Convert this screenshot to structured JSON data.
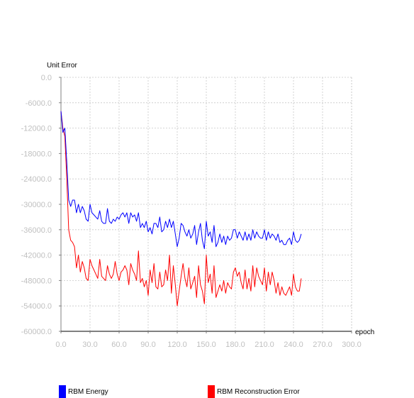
{
  "chart_data": {
    "type": "line",
    "title": "",
    "xlabel": "epoch",
    "ylabel": "Unit Error",
    "xlim": [
      0,
      300
    ],
    "ylim": [
      -60000,
      0
    ],
    "x_ticks": [
      0,
      30,
      60,
      90,
      120,
      150,
      180,
      210,
      240,
      270,
      300
    ],
    "x_tick_labels": [
      "0.0",
      "30.0",
      "60.0",
      "90.0",
      "120.0",
      "150.0",
      "180.0",
      "210.0",
      "240.0",
      "270.0",
      "300.0"
    ],
    "y_ticks": [
      0,
      -6000,
      -12000,
      -18000,
      -24000,
      -30000,
      -36000,
      -42000,
      -48000,
      -54000,
      -60000
    ],
    "y_tick_labels": [
      "0.0",
      "-6000.0",
      "-12000.0",
      "-18000.0",
      "-24000.0",
      "-30000.0",
      "-36000.0",
      "-42000.0",
      "-48000.0",
      "-54000.0",
      "-60000.0"
    ],
    "grid": true,
    "legend_position": "bottom",
    "series": [
      {
        "name": "RBM Energy",
        "color": "#0000ff",
        "x": [
          0,
          2,
          4,
          6,
          8,
          10,
          12,
          14,
          16,
          18,
          20,
          22,
          24,
          26,
          28,
          30,
          32,
          34,
          36,
          38,
          40,
          42,
          44,
          46,
          48,
          50,
          52,
          54,
          56,
          58,
          60,
          62,
          64,
          66,
          68,
          70,
          72,
          74,
          76,
          78,
          80,
          82,
          84,
          86,
          88,
          90,
          92,
          94,
          96,
          98,
          100,
          102,
          104,
          106,
          108,
          110,
          112,
          114,
          116,
          118,
          120,
          122,
          124,
          126,
          128,
          130,
          132,
          134,
          136,
          138,
          140,
          142,
          144,
          146,
          148,
          150,
          152,
          154,
          156,
          158,
          160,
          162,
          164,
          166,
          168,
          170,
          172,
          174,
          176,
          178,
          180,
          182,
          184,
          186,
          188,
          190,
          192,
          194,
          196,
          198,
          200,
          202,
          204,
          206,
          208,
          210,
          212,
          214,
          216,
          218,
          220,
          222,
          224,
          226,
          228,
          230,
          232,
          234,
          236,
          238,
          240,
          242,
          244,
          246,
          248
        ],
        "values": [
          -8000,
          -13000,
          -12000,
          -20000,
          -29000,
          -30500,
          -29000,
          -29000,
          -32000,
          -30000,
          -32000,
          -30500,
          -31500,
          -33500,
          -34000,
          -30000,
          -32000,
          -32500,
          -33000,
          -33500,
          -31500,
          -34000,
          -34500,
          -34500,
          -31000,
          -34000,
          -34500,
          -33500,
          -34000,
          -33000,
          -33500,
          -32500,
          -32000,
          -33000,
          -32000,
          -34500,
          -32000,
          -33000,
          -32500,
          -34000,
          -32000,
          -35500,
          -34500,
          -35500,
          -34000,
          -36500,
          -35500,
          -37000,
          -34500,
          -34500,
          -35500,
          -33000,
          -36500,
          -36000,
          -34000,
          -35500,
          -33500,
          -35500,
          -34000,
          -37000,
          -40000,
          -38000,
          -34500,
          -35000,
          -36500,
          -37500,
          -36000,
          -38000,
          -37000,
          -35000,
          -39500,
          -36500,
          -34500,
          -38500,
          -40500,
          -34000,
          -37500,
          -36500,
          -39000,
          -35000,
          -40000,
          -39000,
          -37000,
          -39000,
          -37500,
          -39500,
          -37500,
          -38500,
          -38000,
          -36000,
          -36000,
          -38000,
          -36500,
          -37500,
          -38500,
          -36500,
          -38500,
          -37000,
          -38500,
          -36000,
          -38000,
          -36500,
          -37500,
          -38000,
          -38000,
          -36000,
          -38500,
          -36500,
          -38000,
          -37000,
          -37500,
          -38500,
          -37000,
          -39000,
          -38500,
          -39500,
          -39500,
          -38500,
          -38000,
          -39500,
          -36500,
          -38500,
          -39000,
          -38500,
          -37000
        ]
      },
      {
        "name": "RBM Reconstruction Error",
        "color": "#ff0000",
        "x": [
          0,
          2,
          4,
          6,
          8,
          10,
          12,
          14,
          16,
          18,
          20,
          22,
          24,
          26,
          28,
          30,
          32,
          34,
          36,
          38,
          40,
          42,
          44,
          46,
          48,
          50,
          52,
          54,
          56,
          58,
          60,
          62,
          64,
          66,
          68,
          70,
          72,
          74,
          76,
          78,
          80,
          82,
          84,
          86,
          88,
          90,
          92,
          94,
          96,
          98,
          100,
          102,
          104,
          106,
          108,
          110,
          112,
          114,
          116,
          118,
          120,
          122,
          124,
          126,
          128,
          130,
          132,
          134,
          136,
          138,
          140,
          142,
          144,
          146,
          148,
          150,
          152,
          154,
          156,
          158,
          160,
          162,
          164,
          166,
          168,
          170,
          172,
          174,
          176,
          178,
          180,
          182,
          184,
          186,
          188,
          190,
          192,
          194,
          196,
          198,
          200,
          202,
          204,
          206,
          208,
          210,
          212,
          214,
          216,
          218,
          220,
          222,
          224,
          226,
          228,
          230,
          232,
          234,
          236,
          238,
          240,
          242,
          244,
          246,
          248
        ],
        "values": [
          -8000,
          -12000,
          -14000,
          -24000,
          -36000,
          -38500,
          -39000,
          -40000,
          -45000,
          -42000,
          -46000,
          -43500,
          -45000,
          -47500,
          -48000,
          -43000,
          -44500,
          -45500,
          -46500,
          -47500,
          -43000,
          -47000,
          -47500,
          -48000,
          -44500,
          -46500,
          -47500,
          -46500,
          -43500,
          -46500,
          -48000,
          -46000,
          -45500,
          -44500,
          -45500,
          -49000,
          -44000,
          -45500,
          -46500,
          -48000,
          -41000,
          -48500,
          -47500,
          -49500,
          -48000,
          -51500,
          -45500,
          -48500,
          -44000,
          -49500,
          -50000,
          -46000,
          -49500,
          -49000,
          -45500,
          -48000,
          -42000,
          -51000,
          -44500,
          -49000,
          -54000,
          -50500,
          -47000,
          -44000,
          -47500,
          -49500,
          -45000,
          -50000,
          -48500,
          -47000,
          -52000,
          -44500,
          -49000,
          -50500,
          -53500,
          -42000,
          -48500,
          -46500,
          -51000,
          -44500,
          -52000,
          -50500,
          -49000,
          -50500,
          -48000,
          -51000,
          -48500,
          -49500,
          -50000,
          -46000,
          -45000,
          -47000,
          -46000,
          -48500,
          -50000,
          -45500,
          -50000,
          -47500,
          -50500,
          -44500,
          -49500,
          -45000,
          -47000,
          -48000,
          -49000,
          -45000,
          -50500,
          -46000,
          -49000,
          -46000,
          -48000,
          -51000,
          -48500,
          -51500,
          -49500,
          -51000,
          -51500,
          -50500,
          -49500,
          -51500,
          -46500,
          -49500,
          -50500,
          -50500,
          -47500
        ]
      }
    ]
  }
}
